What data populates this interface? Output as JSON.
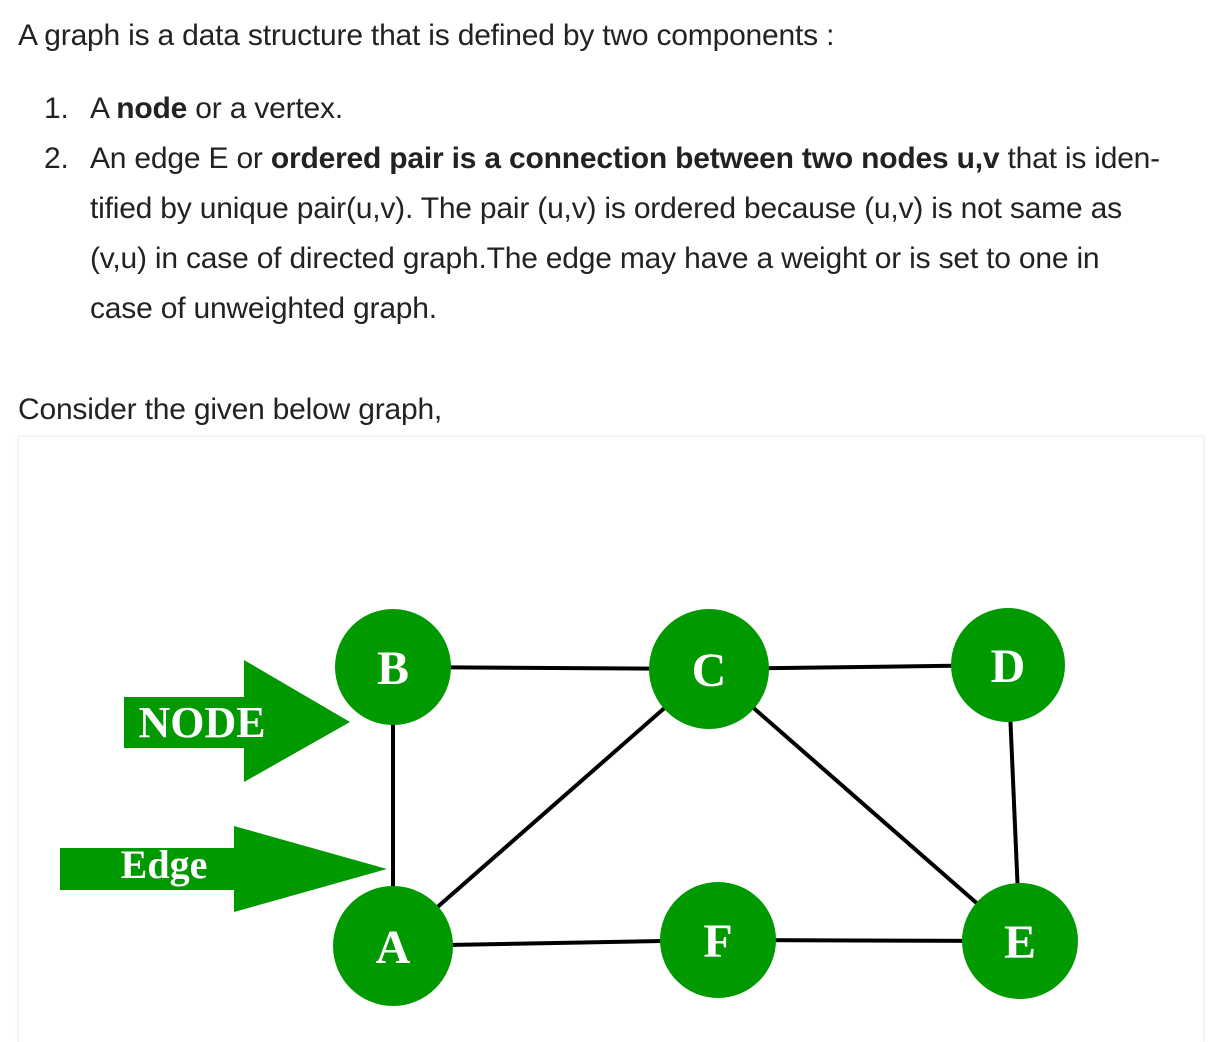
{
  "intro": "A graph is a data structure that is defined by two components :",
  "items": [
    {
      "num": "1.",
      "before": "A ",
      "bold": "node",
      "after": " or a vertex."
    },
    {
      "num": "2.",
      "line1_before": "An edge E or ",
      "line1_bold": "ordered pair is a connection between two nodes u,v",
      "line1_after": " that is iden-",
      "line2": "tified by unique pair(u,v). The pair (u,v) is ordered because (u,v) is not same as",
      "line3": "(v,u) in case of directed graph.The edge may have a weight or is set to one in",
      "line4": "case of unweighted graph."
    }
  ],
  "consider": "Consider the given below graph,",
  "graph": {
    "node_color": "#009900",
    "label_color": "#ffffff",
    "edge_color": "#000000",
    "nodes": [
      {
        "id": "B",
        "label": "B"
      },
      {
        "id": "C",
        "label": "C"
      },
      {
        "id": "D",
        "label": "D"
      },
      {
        "id": "A",
        "label": "A"
      },
      {
        "id": "F",
        "label": "F"
      },
      {
        "id": "E",
        "label": "E"
      }
    ],
    "edges": [
      [
        "B",
        "C"
      ],
      [
        "C",
        "D"
      ],
      [
        "B",
        "A"
      ],
      [
        "A",
        "C"
      ],
      [
        "C",
        "E"
      ],
      [
        "D",
        "E"
      ],
      [
        "A",
        "F"
      ],
      [
        "F",
        "E"
      ]
    ],
    "callouts": [
      {
        "id": "node",
        "label": "NODE",
        "points_to": "B"
      },
      {
        "id": "edge",
        "label": "Edge",
        "points_to": "B-A"
      }
    ]
  }
}
